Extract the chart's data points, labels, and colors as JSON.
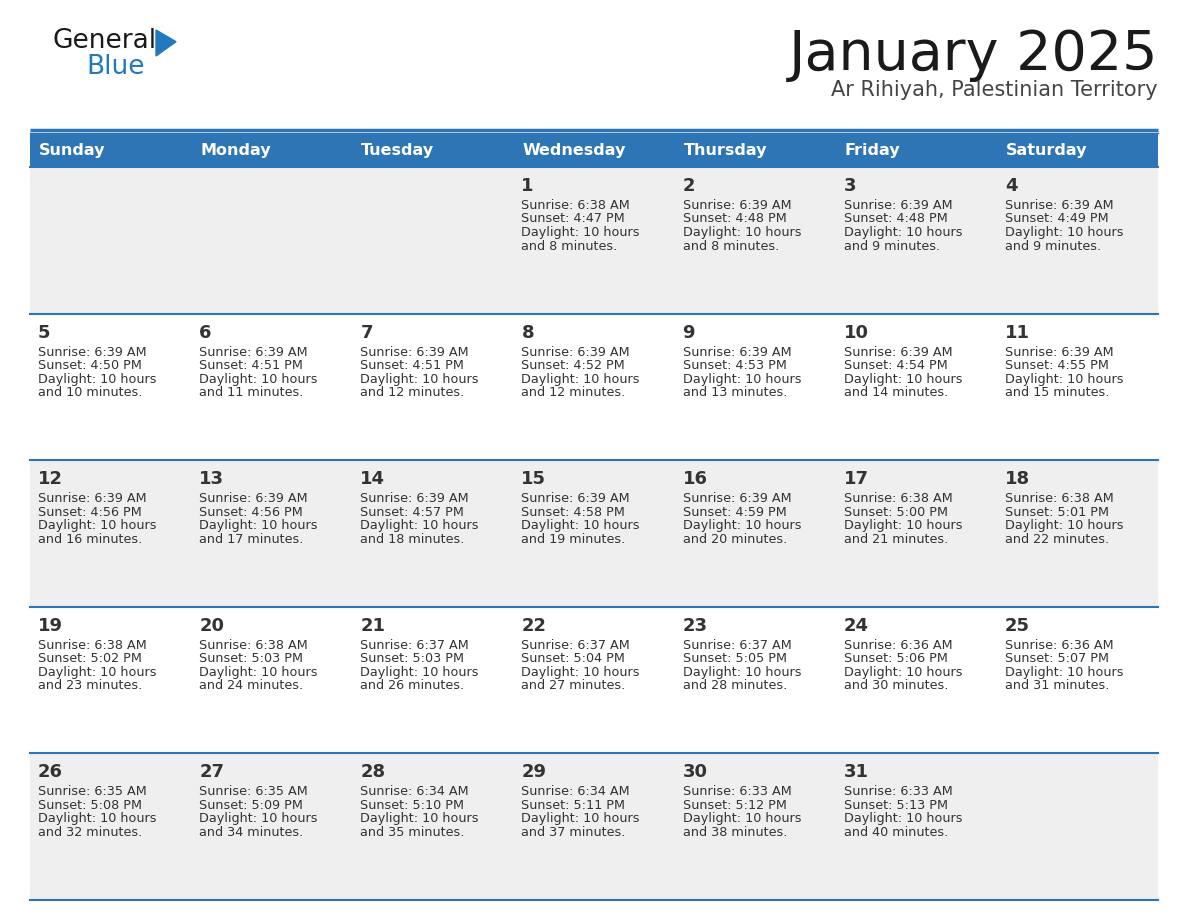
{
  "title": "January 2025",
  "subtitle": "Ar Rihiyah, Palestinian Territory",
  "header_bg": "#2E75B6",
  "header_text_color": "#FFFFFF",
  "day_names": [
    "Sunday",
    "Monday",
    "Tuesday",
    "Wednesday",
    "Thursday",
    "Friday",
    "Saturday"
  ],
  "row_bg_even": "#EFEFEF",
  "row_bg_odd": "#FFFFFF",
  "cell_border_color": "#2E75B6",
  "day_number_color": "#333333",
  "info_text_color": "#333333",
  "calendar_data": [
    [
      {
        "day": null,
        "sunrise": null,
        "sunset": null,
        "daylight": null
      },
      {
        "day": null,
        "sunrise": null,
        "sunset": null,
        "daylight": null
      },
      {
        "day": null,
        "sunrise": null,
        "sunset": null,
        "daylight": null
      },
      {
        "day": 1,
        "sunrise": "6:38 AM",
        "sunset": "4:47 PM",
        "daylight_line1": "10 hours",
        "daylight_line2": "and 8 minutes."
      },
      {
        "day": 2,
        "sunrise": "6:39 AM",
        "sunset": "4:48 PM",
        "daylight_line1": "10 hours",
        "daylight_line2": "and 8 minutes."
      },
      {
        "day": 3,
        "sunrise": "6:39 AM",
        "sunset": "4:48 PM",
        "daylight_line1": "10 hours",
        "daylight_line2": "and 9 minutes."
      },
      {
        "day": 4,
        "sunrise": "6:39 AM",
        "sunset": "4:49 PM",
        "daylight_line1": "10 hours",
        "daylight_line2": "and 9 minutes."
      }
    ],
    [
      {
        "day": 5,
        "sunrise": "6:39 AM",
        "sunset": "4:50 PM",
        "daylight_line1": "10 hours",
        "daylight_line2": "and 10 minutes."
      },
      {
        "day": 6,
        "sunrise": "6:39 AM",
        "sunset": "4:51 PM",
        "daylight_line1": "10 hours",
        "daylight_line2": "and 11 minutes."
      },
      {
        "day": 7,
        "sunrise": "6:39 AM",
        "sunset": "4:51 PM",
        "daylight_line1": "10 hours",
        "daylight_line2": "and 12 minutes."
      },
      {
        "day": 8,
        "sunrise": "6:39 AM",
        "sunset": "4:52 PM",
        "daylight_line1": "10 hours",
        "daylight_line2": "and 12 minutes."
      },
      {
        "day": 9,
        "sunrise": "6:39 AM",
        "sunset": "4:53 PM",
        "daylight_line1": "10 hours",
        "daylight_line2": "and 13 minutes."
      },
      {
        "day": 10,
        "sunrise": "6:39 AM",
        "sunset": "4:54 PM",
        "daylight_line1": "10 hours",
        "daylight_line2": "and 14 minutes."
      },
      {
        "day": 11,
        "sunrise": "6:39 AM",
        "sunset": "4:55 PM",
        "daylight_line1": "10 hours",
        "daylight_line2": "and 15 minutes."
      }
    ],
    [
      {
        "day": 12,
        "sunrise": "6:39 AM",
        "sunset": "4:56 PM",
        "daylight_line1": "10 hours",
        "daylight_line2": "and 16 minutes."
      },
      {
        "day": 13,
        "sunrise": "6:39 AM",
        "sunset": "4:56 PM",
        "daylight_line1": "10 hours",
        "daylight_line2": "and 17 minutes."
      },
      {
        "day": 14,
        "sunrise": "6:39 AM",
        "sunset": "4:57 PM",
        "daylight_line1": "10 hours",
        "daylight_line2": "and 18 minutes."
      },
      {
        "day": 15,
        "sunrise": "6:39 AM",
        "sunset": "4:58 PM",
        "daylight_line1": "10 hours",
        "daylight_line2": "and 19 minutes."
      },
      {
        "day": 16,
        "sunrise": "6:39 AM",
        "sunset": "4:59 PM",
        "daylight_line1": "10 hours",
        "daylight_line2": "and 20 minutes."
      },
      {
        "day": 17,
        "sunrise": "6:38 AM",
        "sunset": "5:00 PM",
        "daylight_line1": "10 hours",
        "daylight_line2": "and 21 minutes."
      },
      {
        "day": 18,
        "sunrise": "6:38 AM",
        "sunset": "5:01 PM",
        "daylight_line1": "10 hours",
        "daylight_line2": "and 22 minutes."
      }
    ],
    [
      {
        "day": 19,
        "sunrise": "6:38 AM",
        "sunset": "5:02 PM",
        "daylight_line1": "10 hours",
        "daylight_line2": "and 23 minutes."
      },
      {
        "day": 20,
        "sunrise": "6:38 AM",
        "sunset": "5:03 PM",
        "daylight_line1": "10 hours",
        "daylight_line2": "and 24 minutes."
      },
      {
        "day": 21,
        "sunrise": "6:37 AM",
        "sunset": "5:03 PM",
        "daylight_line1": "10 hours",
        "daylight_line2": "and 26 minutes."
      },
      {
        "day": 22,
        "sunrise": "6:37 AM",
        "sunset": "5:04 PM",
        "daylight_line1": "10 hours",
        "daylight_line2": "and 27 minutes."
      },
      {
        "day": 23,
        "sunrise": "6:37 AM",
        "sunset": "5:05 PM",
        "daylight_line1": "10 hours",
        "daylight_line2": "and 28 minutes."
      },
      {
        "day": 24,
        "sunrise": "6:36 AM",
        "sunset": "5:06 PM",
        "daylight_line1": "10 hours",
        "daylight_line2": "and 30 minutes."
      },
      {
        "day": 25,
        "sunrise": "6:36 AM",
        "sunset": "5:07 PM",
        "daylight_line1": "10 hours",
        "daylight_line2": "and 31 minutes."
      }
    ],
    [
      {
        "day": 26,
        "sunrise": "6:35 AM",
        "sunset": "5:08 PM",
        "daylight_line1": "10 hours",
        "daylight_line2": "and 32 minutes."
      },
      {
        "day": 27,
        "sunrise": "6:35 AM",
        "sunset": "5:09 PM",
        "daylight_line1": "10 hours",
        "daylight_line2": "and 34 minutes."
      },
      {
        "day": 28,
        "sunrise": "6:34 AM",
        "sunset": "5:10 PM",
        "daylight_line1": "10 hours",
        "daylight_line2": "and 35 minutes."
      },
      {
        "day": 29,
        "sunrise": "6:34 AM",
        "sunset": "5:11 PM",
        "daylight_line1": "10 hours",
        "daylight_line2": "and 37 minutes."
      },
      {
        "day": 30,
        "sunrise": "6:33 AM",
        "sunset": "5:12 PM",
        "daylight_line1": "10 hours",
        "daylight_line2": "and 38 minutes."
      },
      {
        "day": 31,
        "sunrise": "6:33 AM",
        "sunset": "5:13 PM",
        "daylight_line1": "10 hours",
        "daylight_line2": "and 40 minutes."
      },
      {
        "day": null,
        "sunrise": null,
        "sunset": null,
        "daylight_line1": null,
        "daylight_line2": null
      }
    ]
  ],
  "logo_color_general": "#1a1a1a",
  "logo_color_blue": "#2279BD",
  "logo_triangle_color": "#2279BD",
  "fig_width": 11.88,
  "fig_height": 9.18,
  "dpi": 100
}
